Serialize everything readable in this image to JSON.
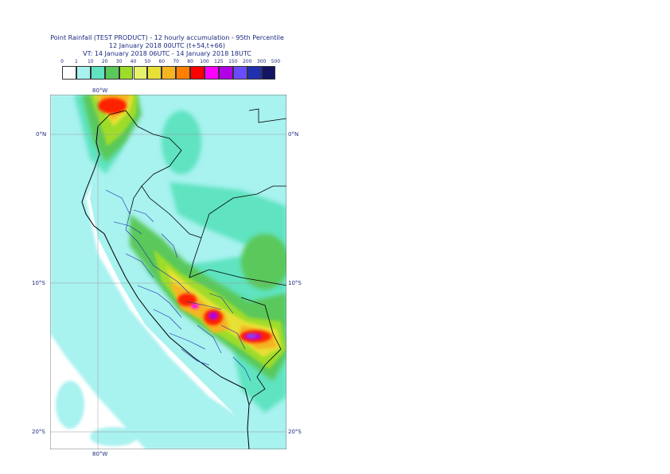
{
  "header": {
    "line1": "Point Rainfall (TEST PRODUCT) - 12 hourly accumulation - 95th Percentile",
    "line2": "12 January 2018 00UTC (t+54,t+66)",
    "line3": "VT: 14 January 2018 06UTC - 14 January 2018 18UTC"
  },
  "legend": {
    "thresholds": [
      "0",
      "1",
      "10",
      "20",
      "30",
      "40",
      "50",
      "60",
      "70",
      "80",
      "100",
      "125",
      "150",
      "200",
      "300",
      "500"
    ],
    "colors": [
      "#ffffff",
      "#a8f2f0",
      "#5fe3c0",
      "#5ac85a",
      "#9edc2a",
      "#e6f26a",
      "#e8e036",
      "#f6b420",
      "#ff7f00",
      "#ff0000",
      "#ff00ff",
      "#b200e6",
      "#6a4cff",
      "#2030b0",
      "#141464"
    ]
  },
  "axes": {
    "lon_top": "80°W",
    "lon_bottom": "80°W",
    "lat_0": "0°N",
    "lat_10": "10°S",
    "lat_20": "20°S"
  }
}
